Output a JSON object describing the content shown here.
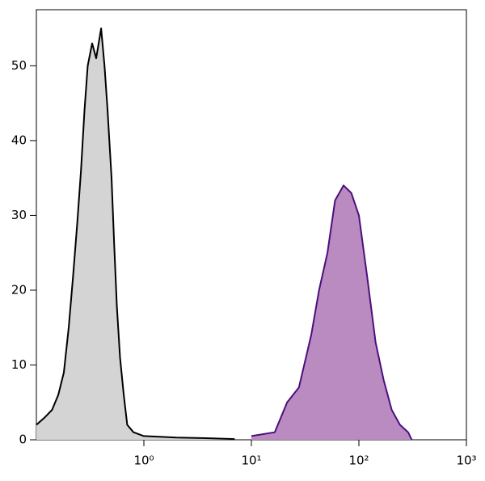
{
  "chart_data": {
    "type": "area",
    "xscale": "log",
    "xlim": [
      0.1,
      1000
    ],
    "ylim": [
      0,
      57.5
    ],
    "xticks": [
      {
        "value": 1,
        "label": "10⁰"
      },
      {
        "value": 10,
        "label": "10¹"
      },
      {
        "value": 100,
        "label": "10²"
      },
      {
        "value": 1000,
        "label": "10³"
      }
    ],
    "yticks": [
      0,
      10,
      20,
      30,
      40,
      50
    ],
    "series": [
      {
        "color": "#000000",
        "fill": "#d4d4d4",
        "x": [
          0.1,
          0.12,
          0.14,
          0.16,
          0.18,
          0.2,
          0.22,
          0.24,
          0.26,
          0.28,
          0.3,
          0.33,
          0.36,
          0.4,
          0.43,
          0.46,
          0.5,
          0.53,
          0.56,
          0.6,
          0.65,
          0.7,
          0.8,
          1,
          2,
          4,
          7
        ],
        "values": [
          2,
          3,
          4,
          6,
          9,
          15,
          22,
          29,
          36,
          44,
          50,
          53,
          51,
          55,
          50,
          44,
          35,
          26,
          18,
          11,
          6,
          2,
          1,
          0.5,
          0.3,
          0.2,
          0.1
        ]
      },
      {
        "color": "#4b0f7d",
        "fill": "#b98bc0",
        "x": [
          10,
          16.5,
          21.5,
          27.7,
          36,
          42.6,
          51,
          60,
          72,
          85,
          100,
          119,
          143,
          170,
          202,
          241,
          287,
          310
        ],
        "values": [
          0.5,
          1,
          5,
          7,
          14,
          20,
          25,
          32,
          34,
          33,
          30,
          22,
          13,
          8,
          4,
          2,
          1,
          0
        ]
      }
    ]
  }
}
